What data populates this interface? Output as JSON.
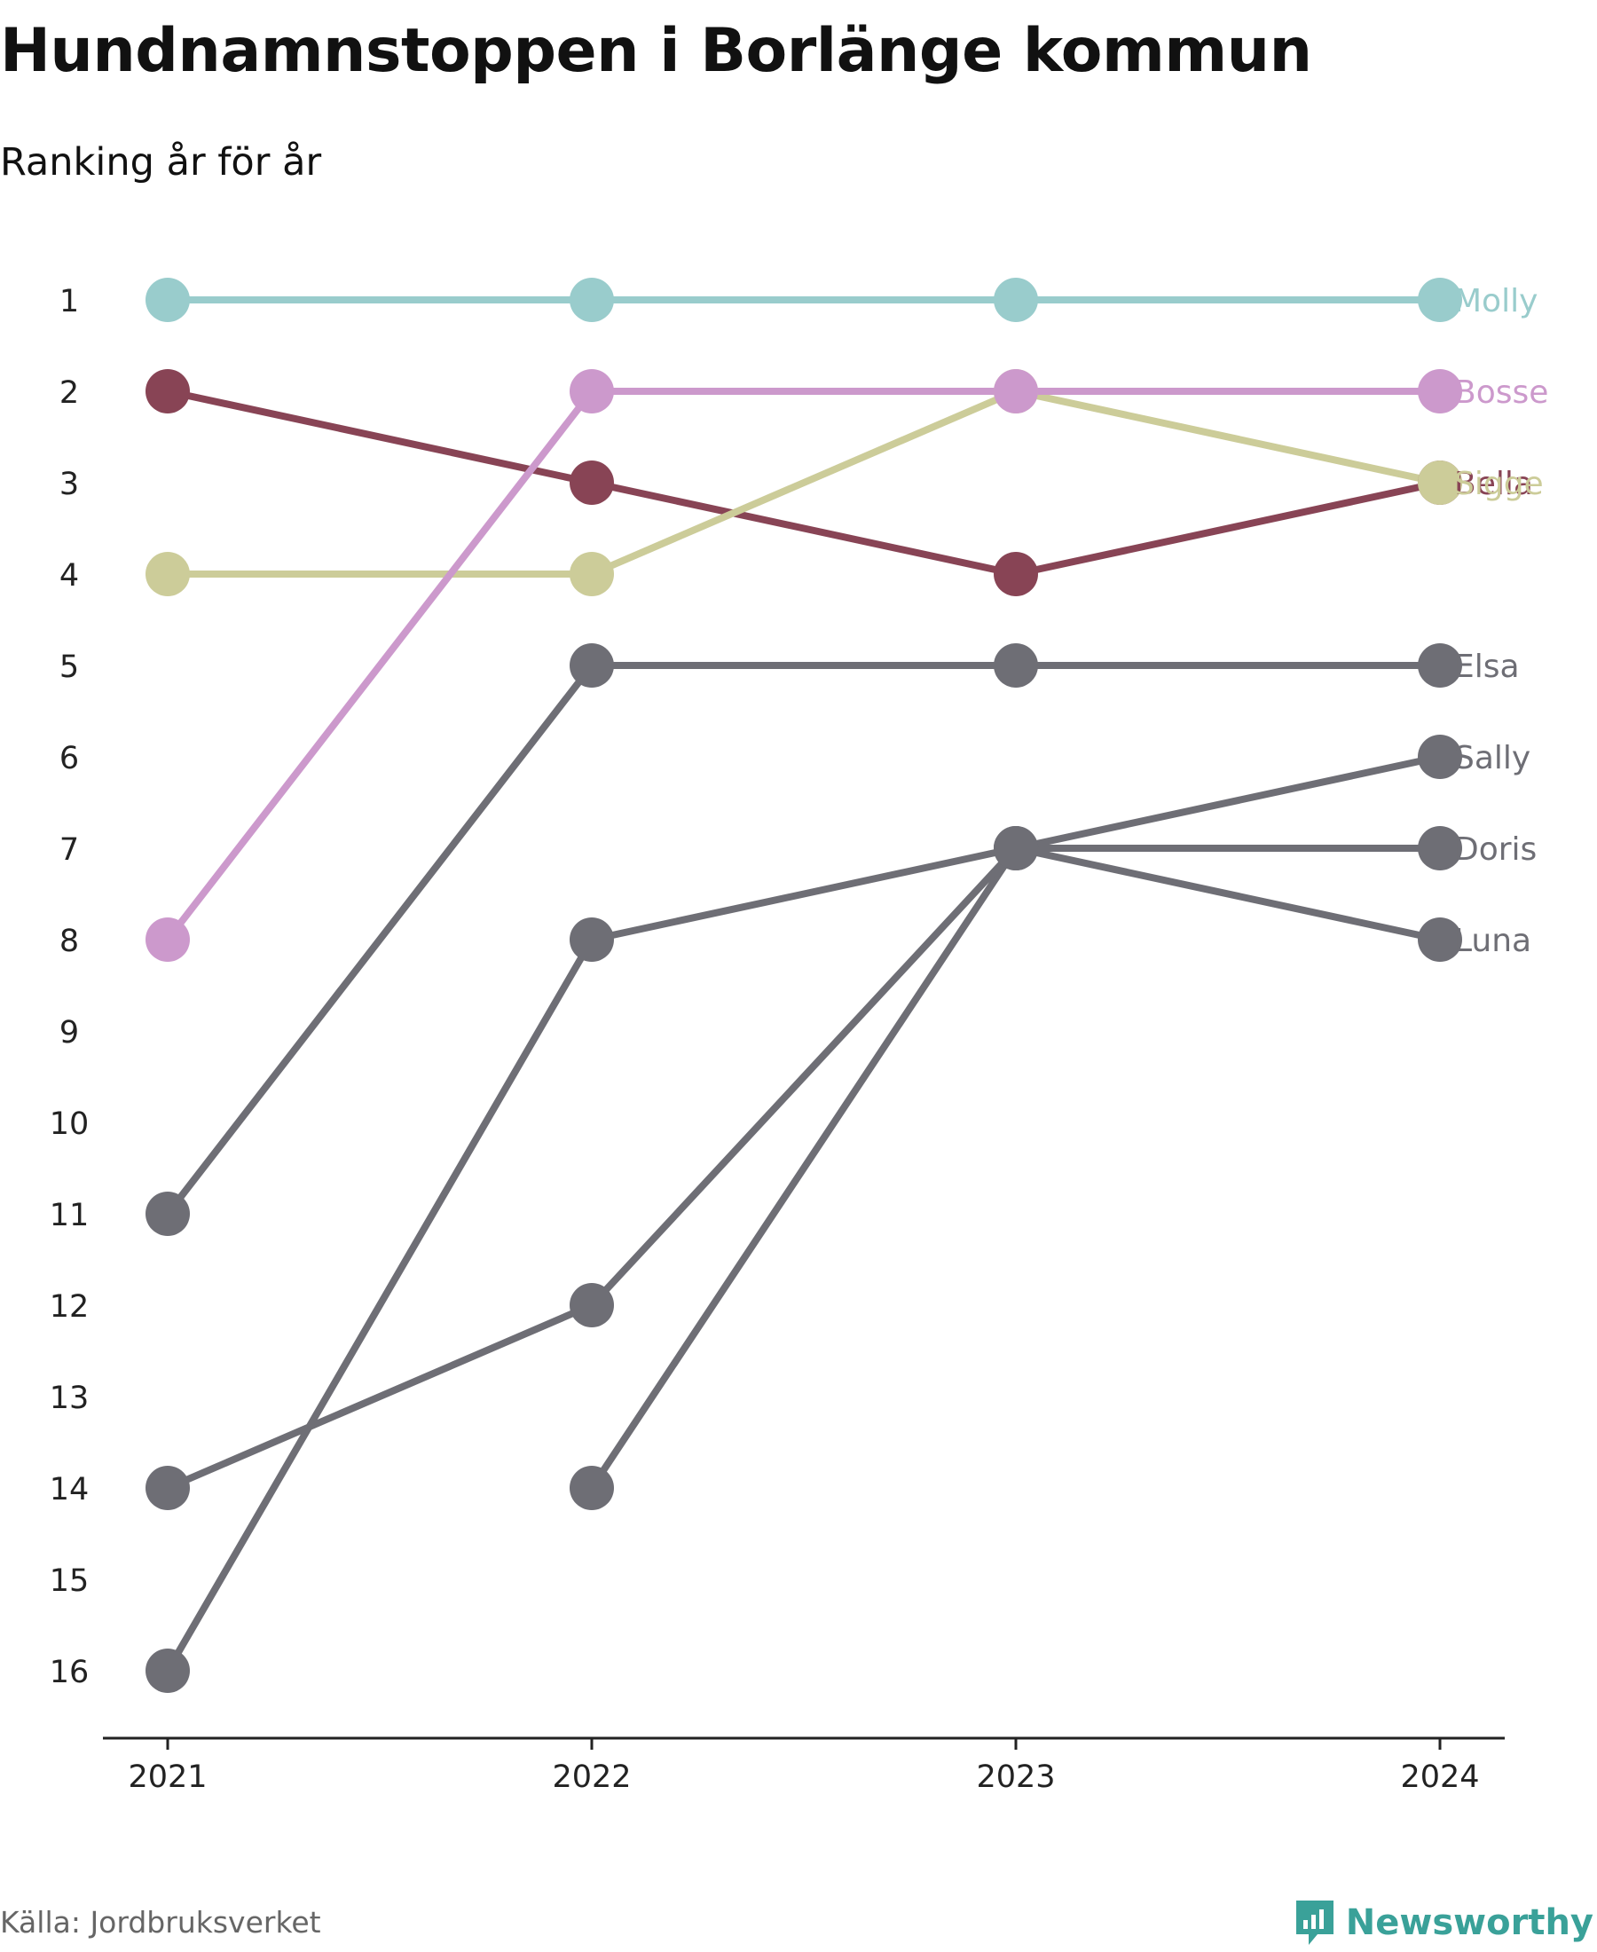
{
  "title": "Hundnamnstoppen i Borlänge kommun",
  "subtitle": "Ranking år för år",
  "source": "Källa: Jordbruksverket",
  "brand": {
    "name": "Newsworthy",
    "icon": "bar-chart-speech-icon",
    "color": "#3aa199"
  },
  "chart_data": {
    "type": "line",
    "categories": [
      "2021",
      "2022",
      "2023",
      "2024"
    ],
    "yticks": [
      "1",
      "2",
      "3",
      "4",
      "5",
      "6",
      "7",
      "8",
      "9",
      "10",
      "11",
      "12",
      "13",
      "14",
      "15",
      "16"
    ],
    "ylim": [
      1,
      16
    ],
    "y_reversed": true,
    "grid": false,
    "legend": "direct-labels-right",
    "series": [
      {
        "name": "Molly",
        "color": "#99cccc",
        "values": [
          1,
          1,
          1,
          1
        ]
      },
      {
        "name": "Bosse",
        "color": "#cc99cc",
        "values": [
          8,
          2,
          2,
          2
        ]
      },
      {
        "name": "Sigge",
        "color": "#cccc99",
        "values": [
          4,
          4,
          2,
          3
        ]
      },
      {
        "name": "Bella",
        "color": "#884455",
        "values": [
          2,
          3,
          4,
          3
        ]
      },
      {
        "name": "Elsa",
        "color": "#6e6e75",
        "values": [
          11,
          5,
          5,
          5
        ]
      },
      {
        "name": "Sally",
        "color": "#6e6e75",
        "values": [
          16,
          8,
          7,
          6
        ]
      },
      {
        "name": "Doris",
        "color": "#6e6e75",
        "values": [
          14,
          12,
          7,
          7
        ]
      },
      {
        "name": "Luna",
        "color": "#6e6e75",
        "values": [
          null,
          14,
          7,
          8
        ]
      }
    ]
  }
}
